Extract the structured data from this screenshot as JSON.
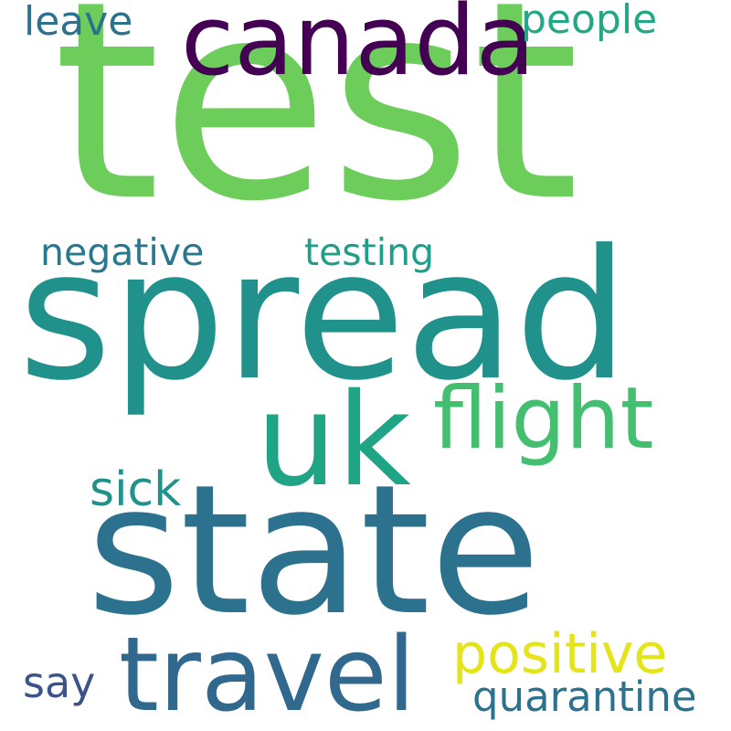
{
  "word_cloud": {
    "words": [
      {
        "text": "test",
        "color": "#6ccd5a"
      },
      {
        "text": "spread",
        "color": "#21918c"
      },
      {
        "text": "state",
        "color": "#2c728e"
      },
      {
        "text": "canada",
        "color": "#440154"
      },
      {
        "text": "uk",
        "color": "#20a486"
      },
      {
        "text": "flight",
        "color": "#44bf70"
      },
      {
        "text": "travel",
        "color": "#31688e"
      },
      {
        "text": "positive",
        "color": "#e5e419"
      },
      {
        "text": "negative",
        "color": "#2a788e"
      },
      {
        "text": "testing",
        "color": "#1f9e89"
      },
      {
        "text": "people",
        "color": "#22a884"
      },
      {
        "text": "leave",
        "color": "#2c728e"
      },
      {
        "text": "sick",
        "color": "#21918c"
      },
      {
        "text": "say",
        "color": "#3b528b"
      },
      {
        "text": "quarantine",
        "color": "#2c728e"
      }
    ]
  }
}
